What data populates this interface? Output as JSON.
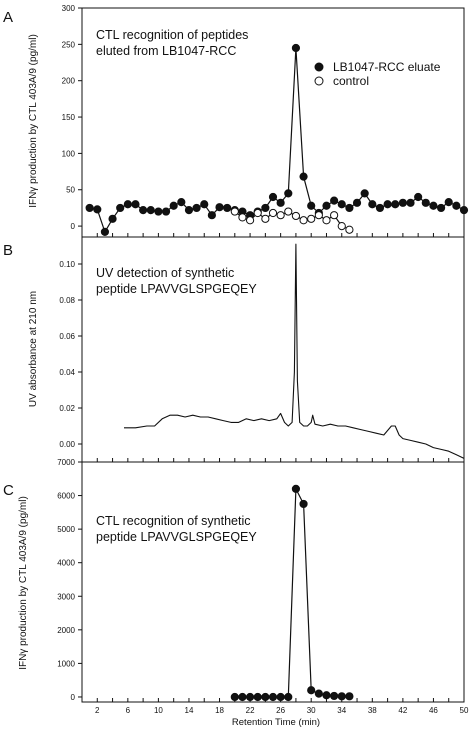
{
  "chart_data": [
    {
      "panel": "A",
      "type": "line",
      "title_lines": [
        "CTL recognition of peptides",
        "eluted from LB1047-RCC"
      ],
      "ylabel": "IFNγ production by CTL 403A/9 (pg/ml)",
      "xlabel": "",
      "ylim": [
        -15,
        300
      ],
      "yticks": [
        0,
        50,
        100,
        150,
        200,
        250,
        300
      ],
      "xlim": [
        0,
        50
      ],
      "xticks": [
        2,
        4,
        6,
        8,
        10,
        12,
        14,
        16,
        18,
        20,
        22,
        24,
        26,
        28,
        30,
        32,
        34,
        36,
        38,
        40,
        42,
        44,
        46,
        48,
        50
      ],
      "xticklabels": [],
      "series": [
        {
          "name": "LB1047-RCC eluate",
          "marker": "filled",
          "x": [
            1,
            2,
            3,
            4,
            5,
            6,
            7,
            8,
            9,
            10,
            11,
            12,
            13,
            14,
            15,
            16,
            17,
            18,
            19,
            20,
            21,
            22,
            23,
            24,
            25,
            26,
            27,
            28,
            29,
            30,
            31,
            32,
            33,
            34,
            35,
            36,
            37,
            38,
            39,
            40,
            41,
            42,
            43,
            44,
            45,
            46,
            47,
            48,
            49,
            50
          ],
          "y": [
            25,
            23,
            -8,
            10,
            25,
            30,
            30,
            22,
            22,
            20,
            20,
            28,
            33,
            22,
            25,
            30,
            15,
            26,
            25,
            22,
            20,
            15,
            20,
            25,
            40,
            32,
            45,
            245,
            68,
            28,
            18,
            28,
            35,
            30,
            25,
            32,
            45,
            30,
            25,
            30,
            30,
            32,
            32,
            40,
            32,
            28,
            25,
            33,
            28,
            22
          ]
        },
        {
          "name": "control",
          "marker": "open",
          "x": [
            20,
            21,
            22,
            23,
            24,
            25,
            26,
            27,
            28,
            29,
            30,
            31,
            32,
            33,
            34,
            35
          ],
          "y": [
            20,
            12,
            8,
            18,
            10,
            18,
            15,
            20,
            14,
            8,
            10,
            15,
            8,
            15,
            0,
            -5
          ]
        }
      ],
      "legend_placement": "top-right"
    },
    {
      "panel": "B",
      "type": "line",
      "title_lines": [
        "UV detection of synthetic",
        "peptide LPAVVGLSPGEQEY"
      ],
      "ylabel": "UV absorbance at 210 nm",
      "xlabel": "",
      "ylim": [
        -0.01,
        0.115
      ],
      "yticks": [
        0.0,
        0.02,
        0.04,
        0.06,
        0.08,
        0.1
      ],
      "yticklabels": [
        "0.00",
        "0.02",
        "0.04",
        "0.06",
        "0.08",
        "0.10"
      ],
      "xlim": [
        0,
        50
      ],
      "xticks": [
        2,
        4,
        6,
        8,
        10,
        12,
        14,
        16,
        18,
        20,
        22,
        24,
        26,
        28,
        30,
        32,
        34,
        36,
        38,
        40,
        42,
        44,
        46,
        48,
        50
      ],
      "xticklabels": [],
      "series": [
        {
          "x": [
            5.5,
            7,
            8.5,
            9.5,
            10.5,
            11.5,
            12.5,
            13.5,
            14.5,
            15.5,
            16.5,
            17.5,
            18.5,
            19.5,
            20.5,
            21.5,
            22.5,
            23.5,
            24.5,
            25.5,
            26,
            26.5,
            27,
            27.5,
            27.8,
            28,
            28.2,
            28.5,
            29,
            29.5,
            30,
            30.2,
            30.5,
            31.5,
            32.5,
            33.5,
            34.5,
            35.5,
            36.5,
            37.5,
            38.5,
            39.5,
            40.5,
            41,
            41.5,
            42,
            43,
            44,
            45,
            46,
            47,
            48,
            49,
            50
          ],
          "y": [
            0.009,
            0.009,
            0.01,
            0.01,
            0.014,
            0.016,
            0.016,
            0.015,
            0.016,
            0.015,
            0.015,
            0.014,
            0.013,
            0.012,
            0.012,
            0.014,
            0.013,
            0.014,
            0.013,
            0.014,
            0.017,
            0.012,
            0.01,
            0.012,
            0.04,
            0.111,
            0.035,
            0.012,
            0.01,
            0.01,
            0.012,
            0.016,
            0.011,
            0.01,
            0.011,
            0.01,
            0.01,
            0.009,
            0.008,
            0.007,
            0.006,
            0.005,
            0.01,
            0.01,
            0.005,
            0.003,
            0.002,
            0.001,
            0.0,
            -0.002,
            -0.003,
            -0.004,
            -0.006,
            -0.008
          ]
        }
      ]
    },
    {
      "panel": "C",
      "type": "line",
      "title_lines": [
        "CTL recognition of synthetic",
        "peptide LPAVVGLSPGEQEY"
      ],
      "ylabel": "IFNγ production by CTL 403A/9 (pg/ml)",
      "xlabel": "Retention Time (min)",
      "ylim": [
        -150,
        7000
      ],
      "yticks": [
        0,
        1000,
        2000,
        3000,
        4000,
        5000,
        6000,
        7000
      ],
      "xlim": [
        0,
        50
      ],
      "xticks": [
        2,
        4,
        6,
        8,
        10,
        12,
        14,
        16,
        18,
        20,
        22,
        24,
        26,
        28,
        30,
        32,
        34,
        36,
        38,
        40,
        42,
        44,
        46,
        48,
        50
      ],
      "xticklabels": [
        "2",
        "",
        "6",
        "",
        "10",
        "",
        "14",
        "",
        "18",
        "",
        "22",
        "",
        "26",
        "",
        "30",
        "",
        "34",
        "",
        "38",
        "",
        "42",
        "",
        "46",
        "",
        "50"
      ],
      "series": [
        {
          "marker": "filled",
          "x": [
            20,
            21,
            22,
            23,
            24,
            25,
            26,
            27,
            28,
            29,
            30,
            31,
            32,
            33,
            34,
            35
          ],
          "y": [
            0,
            0,
            0,
            0,
            0,
            0,
            0,
            0,
            6200,
            5750,
            200,
            100,
            50,
            30,
            20,
            20
          ]
        }
      ]
    }
  ]
}
